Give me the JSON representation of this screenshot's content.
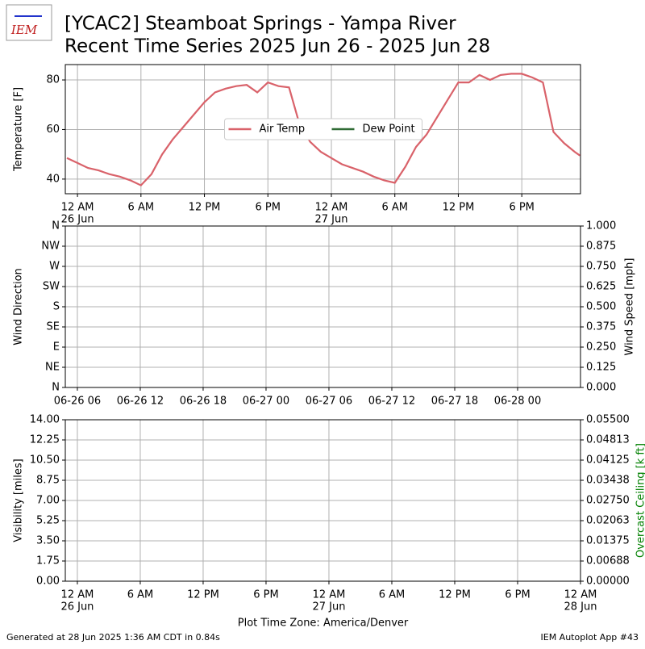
{
  "header": {
    "logo": "IEM",
    "title_line1": "[YCAC2] Steamboat Springs - Yampa River",
    "title_line2": "Recent Time Series 2025 Jun 26 - 2025 Jun 28"
  },
  "footer": {
    "left": "Generated at 28 Jun 2025 1:36 AM CDT in 0.84s",
    "right": "IEM Autoplot App #43"
  },
  "chart_data": [
    {
      "type": "line",
      "ylabel": "Temperature [F]",
      "grid": true,
      "legend": "center",
      "xlim": [
        "2025-06-25T22:51",
        "2025-06-27T23:33"
      ],
      "xticks": [
        {
          "value": "2025-06-26T00:00",
          "label": "12 AM"
        },
        {
          "value": "2025-06-26T06:00",
          "label": "6 AM"
        },
        {
          "value": "2025-06-26T12:00",
          "label": "12 PM"
        },
        {
          "value": "2025-06-26T18:00",
          "label": "6 PM"
        },
        {
          "value": "2025-06-27T00:00",
          "label": "12 AM"
        },
        {
          "value": "2025-06-27T06:00",
          "label": "6 AM"
        },
        {
          "value": "2025-06-27T12:00",
          "label": "12 PM"
        },
        {
          "value": "2025-06-27T18:00",
          "label": "6 PM"
        }
      ],
      "xtick_dates": [
        {
          "value": "2025-06-26T00:00",
          "label": "26 Jun"
        },
        {
          "value": "2025-06-27T00:00",
          "label": "27 Jun"
        }
      ],
      "ylim": [
        34.1,
        86.2
      ],
      "yticks": [
        40,
        60,
        80
      ],
      "x": [
        "2025-06-25T23:00",
        "2025-06-26T00:00",
        "2025-06-26T01:00",
        "2025-06-26T02:00",
        "2025-06-26T03:00",
        "2025-06-26T04:00",
        "2025-06-26T05:00",
        "2025-06-26T06:00",
        "2025-06-26T07:00",
        "2025-06-26T08:00",
        "2025-06-26T09:00",
        "2025-06-26T10:00",
        "2025-06-26T11:00",
        "2025-06-26T12:00",
        "2025-06-26T13:00",
        "2025-06-26T14:00",
        "2025-06-26T15:00",
        "2025-06-26T16:00",
        "2025-06-26T17:00",
        "2025-06-26T18:00",
        "2025-06-26T19:00",
        "2025-06-26T20:00",
        "2025-06-26T21:00",
        "2025-06-26T22:00",
        "2025-06-26T23:00",
        "2025-06-27T00:00",
        "2025-06-27T01:00",
        "2025-06-27T02:00",
        "2025-06-27T03:00",
        "2025-06-27T04:00",
        "2025-06-27T05:00",
        "2025-06-27T06:00",
        "2025-06-27T07:00",
        "2025-06-27T08:00",
        "2025-06-27T09:00",
        "2025-06-27T10:00",
        "2025-06-27T11:00",
        "2025-06-27T12:00",
        "2025-06-27T13:00",
        "2025-06-27T14:00",
        "2025-06-27T15:00",
        "2025-06-27T16:00",
        "2025-06-27T17:00",
        "2025-06-27T18:00",
        "2025-06-27T19:00",
        "2025-06-27T20:00",
        "2025-06-27T21:00",
        "2025-06-27T22:00",
        "2025-06-27T23:00",
        "2025-06-27T23:30"
      ],
      "series": [
        {
          "name": "Air Temp",
          "color": "#d9626a",
          "values": [
            48.5,
            46.5,
            44.5,
            43.5,
            42,
            41,
            39.5,
            37.5,
            42,
            50,
            56,
            61,
            66,
            71,
            75,
            76.5,
            77.5,
            78,
            75,
            79,
            77.5,
            77,
            62,
            55,
            51,
            48.5,
            46,
            44.5,
            43,
            41,
            39.5,
            38.5,
            45,
            53,
            58,
            65,
            72,
            79,
            79,
            82,
            80,
            82,
            82.5,
            82.5,
            81,
            79,
            59,
            54.5,
            51,
            49.5
          ]
        },
        {
          "name": "Dew Point",
          "color": "#2f6b34",
          "values": [
            null,
            null,
            null,
            null,
            null,
            null,
            null,
            null,
            null,
            null,
            null,
            null,
            null,
            null,
            null,
            null,
            null,
            null,
            null,
            null,
            null,
            null,
            null,
            null,
            null,
            null,
            null,
            null,
            null,
            null,
            null,
            null,
            null,
            null,
            null,
            null,
            null,
            null,
            null,
            null,
            null,
            null,
            null,
            null,
            null,
            null,
            null,
            null,
            null,
            null
          ]
        }
      ]
    },
    {
      "type": "line",
      "ylabel": "Wind Direction",
      "y2label": "Wind Speed [mph]",
      "grid": true,
      "xlim": [
        "2025-06-26T04:51",
        "2025-06-28T06:00"
      ],
      "xticks": [
        {
          "value": "2025-06-26T06:00",
          "label": "06-26 06"
        },
        {
          "value": "2025-06-26T12:00",
          "label": "06-26 12"
        },
        {
          "value": "2025-06-26T18:00",
          "label": "06-26 18"
        },
        {
          "value": "2025-06-27T00:00",
          "label": "06-27 00"
        },
        {
          "value": "2025-06-27T06:00",
          "label": "06-27 06"
        },
        {
          "value": "2025-06-27T12:00",
          "label": "06-27 12"
        },
        {
          "value": "2025-06-27T18:00",
          "label": "06-27 18"
        },
        {
          "value": "2025-06-28T00:00",
          "label": "06-28 00"
        }
      ],
      "ylim": [
        0,
        360
      ],
      "yticks": [
        {
          "value": 0,
          "label": "N"
        },
        {
          "value": 45,
          "label": "NE"
        },
        {
          "value": 90,
          "label": "E"
        },
        {
          "value": 135,
          "label": "SE"
        },
        {
          "value": 180,
          "label": "S"
        },
        {
          "value": 225,
          "label": "SW"
        },
        {
          "value": 270,
          "label": "W"
        },
        {
          "value": 315,
          "label": "NW"
        },
        {
          "value": 360,
          "label": "N"
        }
      ],
      "y2lim": [
        0,
        1
      ],
      "y2ticks": [
        {
          "value": 0,
          "label": "0.000"
        },
        {
          "value": 0.125,
          "label": "0.125"
        },
        {
          "value": 0.25,
          "label": "0.250"
        },
        {
          "value": 0.375,
          "label": "0.375"
        },
        {
          "value": 0.5,
          "label": "0.500"
        },
        {
          "value": 0.625,
          "label": "0.625"
        },
        {
          "value": 0.75,
          "label": "0.750"
        },
        {
          "value": 0.875,
          "label": "0.875"
        },
        {
          "value": 1,
          "label": "1.000"
        }
      ]
    },
    {
      "type": "line",
      "ylabel": "Visibility [miles]",
      "y2label": "Overcast Ceiling [k ft]",
      "y2label_color": "#008000",
      "xlabel": "Plot Time Zone: America/Denver",
      "grid": true,
      "xlim": [
        "2025-06-25T22:51",
        "2025-06-28T00:00"
      ],
      "xticks": [
        {
          "value": "2025-06-26T00:00",
          "label": "12 AM"
        },
        {
          "value": "2025-06-26T06:00",
          "label": "6 AM"
        },
        {
          "value": "2025-06-26T12:00",
          "label": "12 PM"
        },
        {
          "value": "2025-06-26T18:00",
          "label": "6 PM"
        },
        {
          "value": "2025-06-27T00:00",
          "label": "12 AM"
        },
        {
          "value": "2025-06-27T06:00",
          "label": "6 AM"
        },
        {
          "value": "2025-06-27T12:00",
          "label": "12 PM"
        },
        {
          "value": "2025-06-27T18:00",
          "label": "6 PM"
        },
        {
          "value": "2025-06-28T00:00",
          "label": "12 AM"
        }
      ],
      "xtick_dates": [
        {
          "value": "2025-06-26T00:00",
          "label": "26 Jun"
        },
        {
          "value": "2025-06-27T00:00",
          "label": "27 Jun"
        },
        {
          "value": "2025-06-28T00:00",
          "label": "28 Jun"
        }
      ],
      "ylim": [
        0,
        14
      ],
      "yticks": [
        {
          "value": 0,
          "label": "0.00"
        },
        {
          "value": 1.75,
          "label": "1.75"
        },
        {
          "value": 3.5,
          "label": "3.50"
        },
        {
          "value": 5.25,
          "label": "5.25"
        },
        {
          "value": 7,
          "label": "7.00"
        },
        {
          "value": 8.75,
          "label": "8.75"
        },
        {
          "value": 10.5,
          "label": "10.50"
        },
        {
          "value": 12.25,
          "label": "12.25"
        },
        {
          "value": 14,
          "label": "14.00"
        }
      ],
      "y2lim": [
        0,
        0.055
      ],
      "y2ticks": [
        {
          "value": 0,
          "label": "0.00000"
        },
        {
          "value": 0.006875,
          "label": "0.00688"
        },
        {
          "value": 0.01375,
          "label": "0.01375"
        },
        {
          "value": 0.020625,
          "label": "0.02063"
        },
        {
          "value": 0.0275,
          "label": "0.02750"
        },
        {
          "value": 0.034375,
          "label": "0.03438"
        },
        {
          "value": 0.04125,
          "label": "0.04125"
        },
        {
          "value": 0.048125,
          "label": "0.04813"
        },
        {
          "value": 0.055,
          "label": "0.05500"
        }
      ]
    }
  ]
}
